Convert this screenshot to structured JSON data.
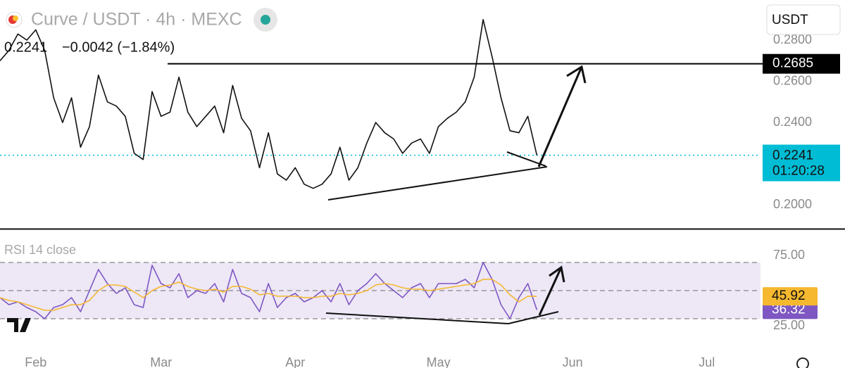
{
  "header": {
    "symbol": "Curve / USDT · 4h · MEXC",
    "price": "0.2241",
    "change": "−0.0042 (−1.84%)",
    "currency": "USDT"
  },
  "chart_data": [
    {
      "type": "line",
      "ylim": [
        0.1884,
        0.2995
      ],
      "yticks": [
        {
          "value": 0.2,
          "label": "0.2000"
        },
        {
          "value": 0.24,
          "label": "0.2400"
        },
        {
          "value": 0.26,
          "label": "0.2600"
        },
        {
          "value": 0.28,
          "label": "0.2800"
        }
      ],
      "series": [
        {
          "color": "#111111",
          "values": [
            0.27,
            0.275,
            0.283,
            0.28,
            0.285,
            0.275,
            0.252,
            0.24,
            0.252,
            0.228,
            0.238,
            0.263,
            0.25,
            0.248,
            0.243,
            0.225,
            0.222,
            0.255,
            0.243,
            0.245,
            0.262,
            0.245,
            0.238,
            0.243,
            0.248,
            0.235,
            0.258,
            0.242,
            0.236,
            0.218,
            0.235,
            0.215,
            0.212,
            0.218,
            0.21,
            0.208,
            0.21,
            0.215,
            0.228,
            0.212,
            0.218,
            0.23,
            0.24,
            0.235,
            0.232,
            0.225,
            0.23,
            0.232,
            0.225,
            0.238,
            0.242,
            0.245,
            0.25,
            0.262,
            0.29,
            0.272,
            0.252,
            0.236,
            0.235,
            0.243,
            0.2241,
            null,
            null,
            null,
            null,
            null,
            null,
            null,
            null,
            null,
            null,
            null,
            null,
            null,
            null,
            null,
            null,
            null,
            null,
            null,
            null,
            null,
            null,
            null,
            null
          ]
        }
      ],
      "hline": {
        "value": 0.2685,
        "label": "0.2685",
        "color": "#000000"
      },
      "last": {
        "value": 0.2241,
        "label": "0.2241",
        "countdown": "01:20:28",
        "color": "#00bcd4"
      }
    },
    {
      "type": "line",
      "title": "RSI 14 close",
      "ylim": [
        4,
        91.5
      ],
      "yticks": [
        {
          "value": 25,
          "label": "25.00"
        },
        {
          "value": 75,
          "label": "75.00"
        }
      ],
      "levels": [
        30,
        50,
        70
      ],
      "band_color": "#ede7f6",
      "categories": [
        null,
        null,
        null,
        null,
        "Feb",
        null,
        null,
        null,
        null,
        null,
        null,
        null,
        null,
        null,
        null,
        null,
        null,
        null,
        "Mar",
        null,
        null,
        null,
        null,
        null,
        null,
        null,
        null,
        null,
        null,
        null,
        null,
        null,
        null,
        "Apr",
        null,
        null,
        null,
        null,
        null,
        null,
        null,
        null,
        null,
        null,
        null,
        null,
        null,
        null,
        null,
        "May",
        null,
        null,
        null,
        null,
        null,
        null,
        null,
        null,
        null,
        null,
        null,
        null,
        null,
        null,
        "Jun",
        null,
        null,
        null,
        null,
        null,
        null,
        null,
        null,
        null,
        null,
        null,
        null,
        null,
        null,
        "Jul",
        null,
        null,
        null,
        null,
        null
      ],
      "series": [
        {
          "color": "#7e57c2",
          "last_label": "36.32",
          "values": [
            45,
            40,
            42,
            38,
            35,
            30,
            38,
            40,
            45,
            35,
            50,
            65,
            55,
            48,
            52,
            40,
            38,
            68,
            55,
            52,
            62,
            45,
            50,
            48,
            55,
            42,
            65,
            48,
            45,
            35,
            55,
            38,
            45,
            48,
            42,
            45,
            50,
            42,
            55,
            40,
            50,
            55,
            62,
            55,
            50,
            45,
            52,
            55,
            45,
            55,
            55,
            55,
            58,
            52,
            70,
            58,
            40,
            30,
            45,
            55,
            36.32,
            null,
            null,
            null,
            null,
            null,
            null,
            null,
            null,
            null,
            null,
            null,
            null,
            null,
            null,
            null,
            null,
            null,
            null,
            null,
            null,
            null,
            null,
            null,
            null
          ]
        },
        {
          "color": "#f5b82e",
          "last_label": "45.92",
          "values": [
            45,
            43,
            42,
            40,
            38,
            36,
            36,
            38,
            40,
            40,
            43,
            50,
            54,
            54,
            53,
            49,
            45,
            50,
            53,
            54,
            56,
            53,
            51,
            50,
            51,
            49,
            53,
            53,
            51,
            47,
            48,
            46,
            46,
            46,
            45,
            45,
            46,
            46,
            48,
            47,
            48,
            50,
            54,
            55,
            54,
            52,
            51,
            51,
            50,
            51,
            52,
            53,
            54,
            55,
            58,
            58,
            54,
            47,
            42,
            46,
            45.92,
            null,
            null,
            null,
            null,
            null,
            null,
            null,
            null,
            null,
            null,
            null,
            null,
            null,
            null,
            null,
            null,
            null,
            null,
            null,
            null,
            null,
            null,
            null,
            null
          ]
        }
      ]
    }
  ]
}
